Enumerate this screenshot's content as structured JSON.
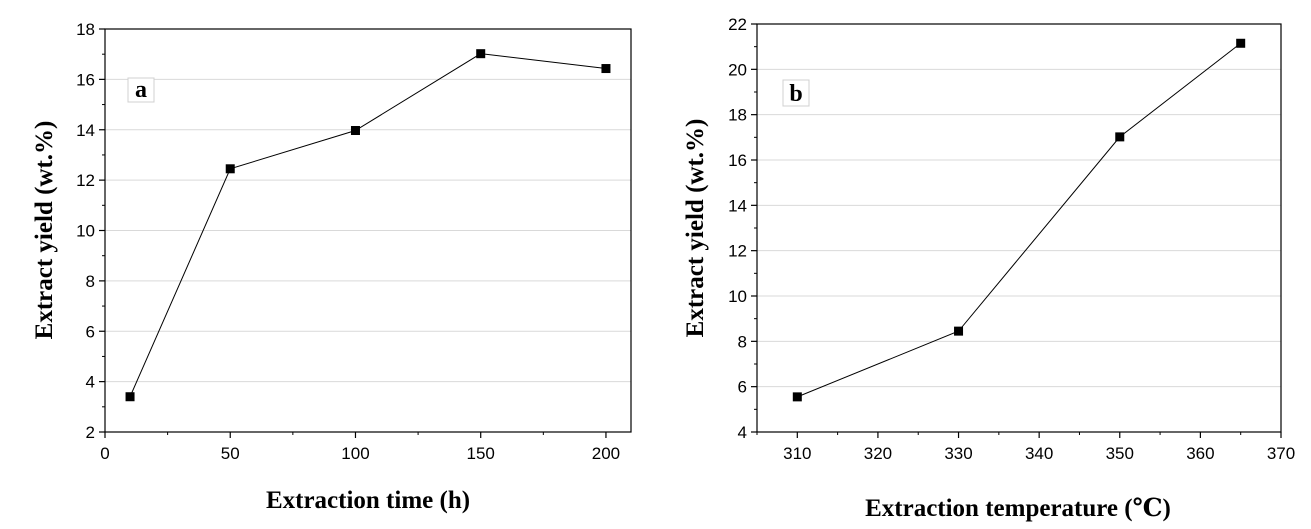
{
  "chart_data": [
    {
      "type": "line",
      "panel_label": "a",
      "xlabel": "Extraction time (h)",
      "ylabel": "Extract yield (wt.%)",
      "xlim": [
        0,
        210
      ],
      "ylim": [
        2,
        18
      ],
      "xticks": [
        0,
        50,
        100,
        150,
        200
      ],
      "yticks": [
        2,
        4,
        6,
        8,
        10,
        12,
        14,
        16,
        18
      ],
      "grid": "horizontal",
      "series": [
        {
          "name": "Extract yield",
          "marker": "square",
          "x": [
            10,
            50,
            100,
            150,
            200
          ],
          "y": [
            3.4,
            12.45,
            13.97,
            17.02,
            16.43
          ]
        }
      ]
    },
    {
      "type": "line",
      "panel_label": "b",
      "xlabel": "Extraction temperature (℃)",
      "ylabel": "Extract yield (wt.%)",
      "xlim": [
        305,
        370
      ],
      "ylim": [
        4,
        22
      ],
      "xticks": [
        310,
        320,
        330,
        340,
        350,
        360,
        370
      ],
      "yticks": [
        4,
        6,
        8,
        10,
        12,
        14,
        16,
        18,
        20,
        22
      ],
      "grid": "horizontal",
      "series": [
        {
          "name": "Extract yield",
          "marker": "square",
          "x": [
            310,
            330,
            350,
            365
          ],
          "y": [
            5.55,
            8.45,
            17.02,
            21.15
          ]
        }
      ]
    }
  ]
}
